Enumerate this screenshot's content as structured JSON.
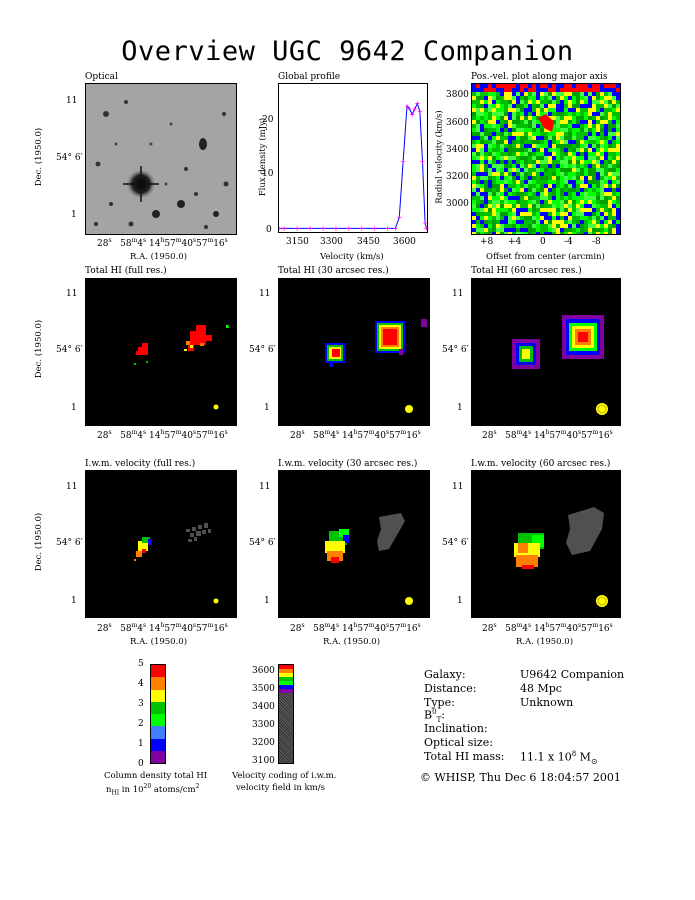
{
  "title": "Overview UGC 9642 Companion",
  "panels": {
    "optical": "Optical",
    "global_profile": "Global profile",
    "pv_plot": "Pos.-vel. plot along major axis",
    "total_full": "Total HI (full res.)",
    "total_30": "Total HI (30 arcsec res.)",
    "total_60": "Total HI (60 arcsec res.)",
    "vel_full": "I.w.m. velocity (full res.)",
    "vel_30": "I.w.m. velocity (30 arcsec res.)",
    "vel_60": "I.w.m. velocity (60 arcsec res.)"
  },
  "axes": {
    "ra_label": "R.A. (1950.0)",
    "dec_label": "Dec. (1950.0)",
    "ra_ticks": [
      "28",
      "58",
      "4",
      "14",
      "57",
      "40",
      "57",
      "16"
    ],
    "dec_ticks": [
      "11",
      "54",
      "6",
      "1"
    ],
    "flux_label": "Flux density (mJy)",
    "velocity_label": "Velocity (km/s)",
    "radial_velocity_label": "Radial velocity (km/s)",
    "offset_label": "Offset from center (arcmin)",
    "profile_y_ticks": [
      "0",
      "10",
      "20"
    ],
    "profile_x_ticks": [
      "3150",
      "3300",
      "3450",
      "3600"
    ],
    "pv_y_ticks": [
      "3800",
      "3600",
      "3400",
      "3200",
      "3000"
    ],
    "pv_x_ticks": [
      "+8",
      "+4",
      "0",
      "-4",
      "-8"
    ]
  },
  "colorbars": {
    "density_ticks": [
      "5",
      "4",
      "3",
      "2",
      "1",
      "0"
    ],
    "density_label_1": "Column density total HI",
    "density_label_2": "n",
    "density_label_2_sub": "HI",
    "density_label_2_rest": " in 10",
    "density_label_2_sup": "20",
    "density_label_2_unit": " atoms/cm",
    "density_label_2_sup2": "2",
    "velocity_ticks": [
      "3600",
      "3500",
      "3400",
      "3300",
      "3200",
      "3100"
    ],
    "velocity_label_1": "Velocity coding of i.w.m.",
    "velocity_label_2": "velocity field in km/s",
    "density_colors": [
      "#ff0000",
      "#ff8000",
      "#ffff00",
      "#00c000",
      "#00ff00",
      "#4080ff",
      "#0000ff",
      "#8000a0"
    ],
    "velocity_colors": [
      "#ff0000",
      "#ff8000",
      "#ffff00",
      "#00c000",
      "#00ff00",
      "#0000ff",
      "#8000a0"
    ]
  },
  "info": {
    "galaxy_label": "Galaxy:",
    "galaxy_value": "U9642 Companion",
    "distance_label": "Distance:",
    "distance_value": "48 Mpc",
    "type_label": "Type:",
    "type_value": "Unknown",
    "bt_label": "B",
    "bt_sup": "0",
    "bt_sub": "T",
    "bt_colon": ":",
    "inclination_label": "Inclination:",
    "optical_size_label": "Optical size:",
    "mass_label": "Total HI mass:",
    "mass_value": "11.1 x 10",
    "mass_exp": "8",
    "mass_unit": " M",
    "footer": "© WHISP, Thu Dec  6 18:04:57 2001"
  },
  "profile_points": [
    {
      "v": 3080,
      "f": 0
    },
    {
      "v": 3100,
      "f": 0
    },
    {
      "v": 3150,
      "f": 0
    },
    {
      "v": 3200,
      "f": 0
    },
    {
      "v": 3250,
      "f": 0
    },
    {
      "v": 3300,
      "f": 0
    },
    {
      "v": 3350,
      "f": 0
    },
    {
      "v": 3400,
      "f": 0
    },
    {
      "v": 3450,
      "f": 0
    },
    {
      "v": 3500,
      "f": 0
    },
    {
      "v": 3530,
      "f": 0
    },
    {
      "v": 3545,
      "f": 2
    },
    {
      "v": 3560,
      "f": 12
    },
    {
      "v": 3575,
      "f": 22
    },
    {
      "v": 3585,
      "f": 21.5
    },
    {
      "v": 3595,
      "f": 20.5
    },
    {
      "v": 3605,
      "f": 21.5
    },
    {
      "v": 3615,
      "f": 22.5
    },
    {
      "v": 3625,
      "f": 21
    },
    {
      "v": 3635,
      "f": 12
    },
    {
      "v": 3645,
      "f": 1
    },
    {
      "v": 3650,
      "f": 0
    }
  ]
}
